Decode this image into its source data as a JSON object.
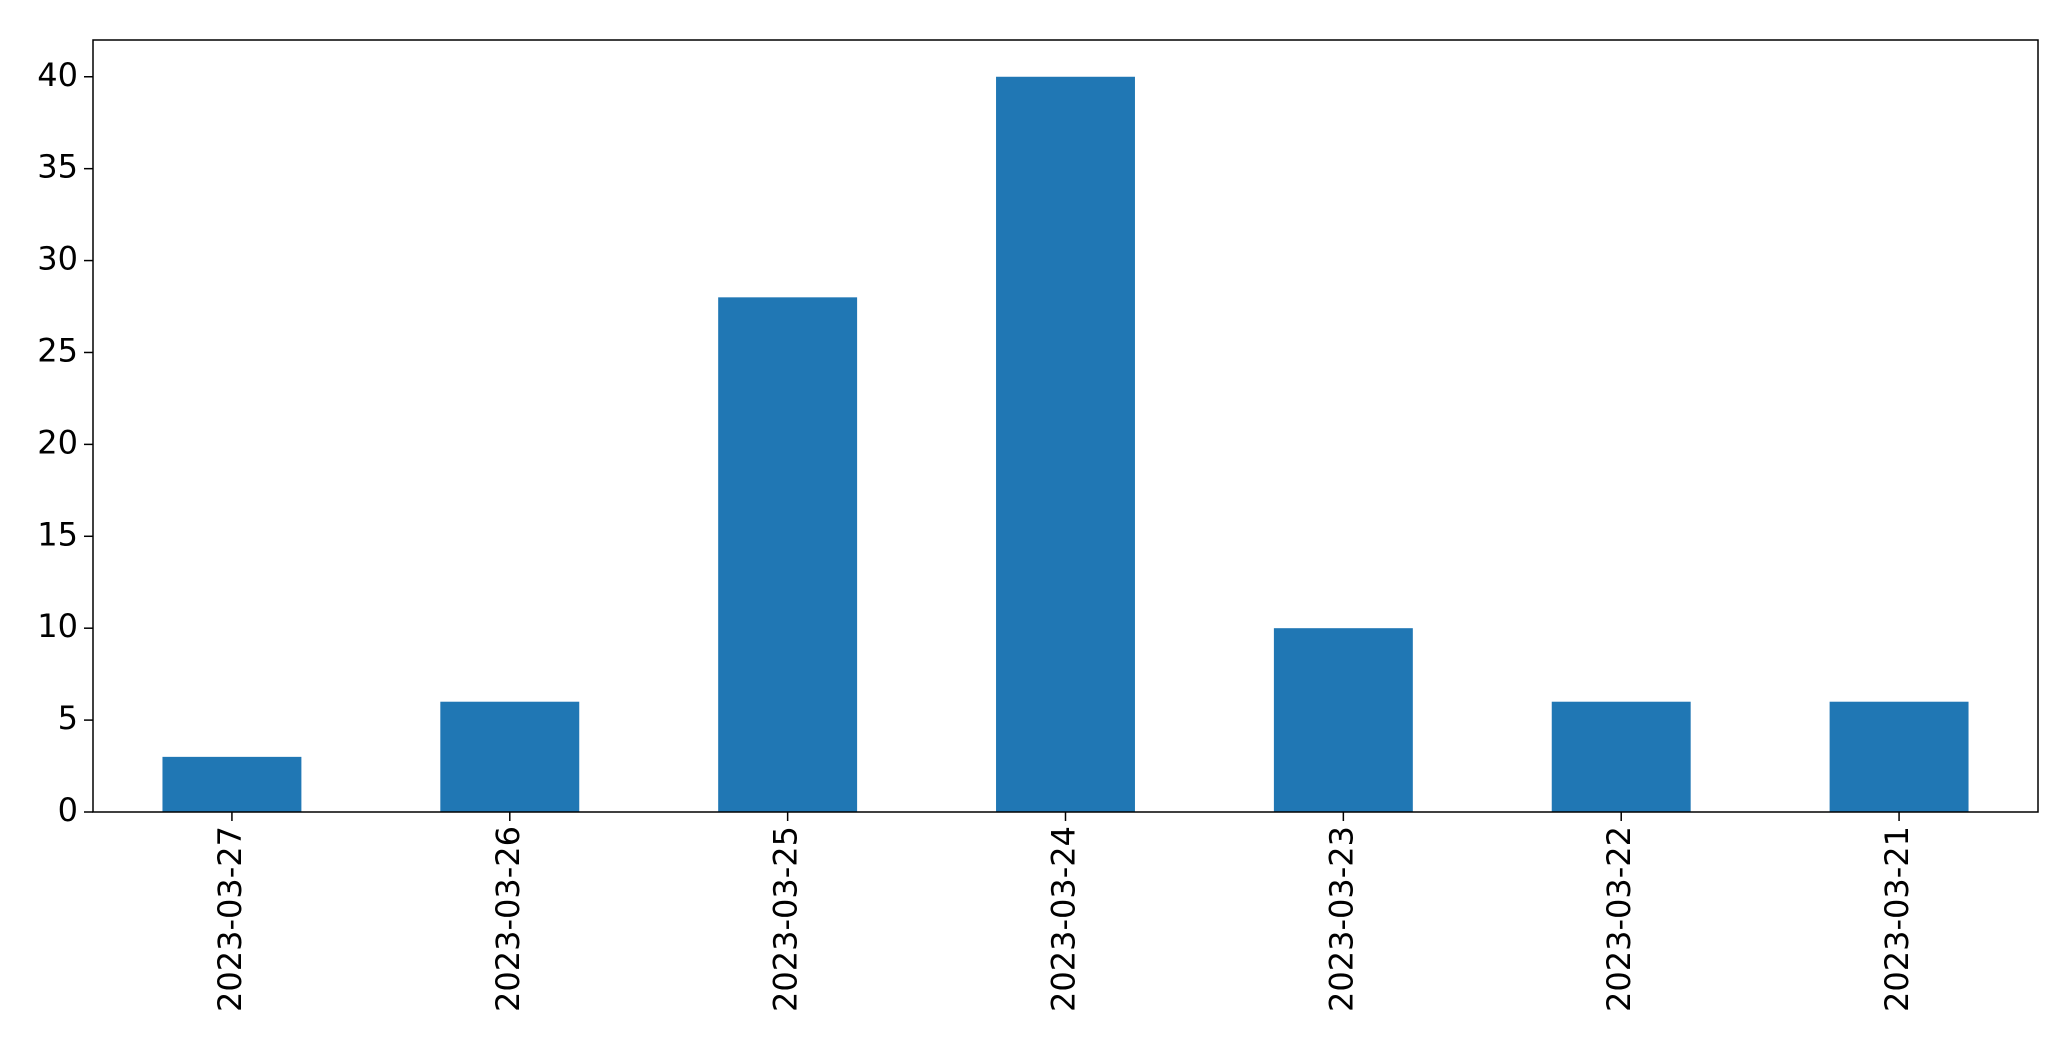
{
  "chart_data": {
    "type": "bar",
    "title": "",
    "xlabel": "",
    "ylabel": "",
    "categories": [
      "2023-03-27",
      "2023-03-26",
      "2023-03-25",
      "2023-03-24",
      "2023-03-23",
      "2023-03-22",
      "2023-03-21"
    ],
    "values": [
      3,
      6,
      28,
      40,
      10,
      6,
      6
    ],
    "ylim": [
      0,
      42
    ],
    "yticks": [
      0,
      5,
      10,
      15,
      20,
      25,
      30,
      35,
      40
    ],
    "grid": false,
    "legend": false,
    "bar_color": "#2077b4"
  }
}
